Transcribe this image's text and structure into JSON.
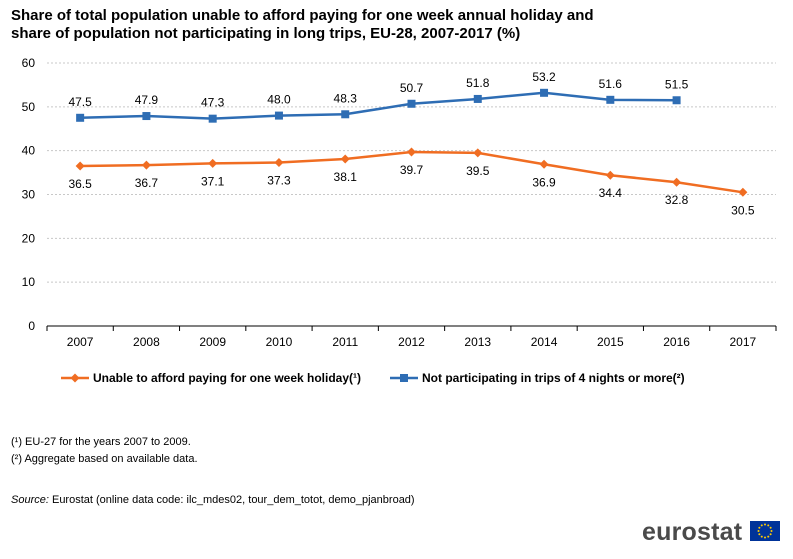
{
  "title_lines": [
    "Share of total population unable to afford paying for one week annual holiday and",
    "share of population not participating in long trips, EU-28, 2007-2017 (%)"
  ],
  "chart_data": {
    "type": "line",
    "x": [
      "2007",
      "2008",
      "2009",
      "2010",
      "2011",
      "2012",
      "2013",
      "2014",
      "2015",
      "2016",
      "2017"
    ],
    "ylim": [
      0,
      60
    ],
    "yticks": [
      0,
      10,
      20,
      30,
      40,
      50,
      60
    ],
    "grid": true,
    "legend_position": "bottom",
    "series": [
      {
        "name": "Unable to afford paying for one week holiday(¹)",
        "color": "#f06d22",
        "marker": "diamond",
        "label_position": "below",
        "values": [
          36.5,
          36.7,
          37.1,
          37.3,
          38.1,
          39.7,
          39.5,
          36.9,
          34.4,
          32.8,
          30.5
        ],
        "labels": [
          "36.5",
          "36.7",
          "37.1",
          "37.3",
          "38.1",
          "39.7",
          "39.5",
          "36.9",
          "34.4",
          "32.8",
          "30.5"
        ]
      },
      {
        "name": "Not participating in trips of 4 nights or more(²)",
        "color": "#2e6db4",
        "marker": "square",
        "label_position": "above",
        "values": [
          47.5,
          47.9,
          47.3,
          48.0,
          48.3,
          50.7,
          51.8,
          53.2,
          51.6,
          51.5,
          null
        ],
        "labels": [
          "47.5",
          "47.9",
          "47.3",
          "48.0",
          "48.3",
          "50.7",
          "51.8",
          "53.2",
          "51.6",
          "51.5",
          null
        ]
      }
    ]
  },
  "footnotes": [
    "(¹) EU-27 for the years 2007 to 2009.",
    "(²) Aggregate based on available data."
  ],
  "source": {
    "label": "Source:",
    "text": " Eurostat (online data code: ilc_mdes02, tour_dem_totot, demo_pjanbroad)"
  },
  "logo": {
    "text": "eurostat",
    "flag_color": "#003399",
    "star_color": "#ffcc00"
  }
}
